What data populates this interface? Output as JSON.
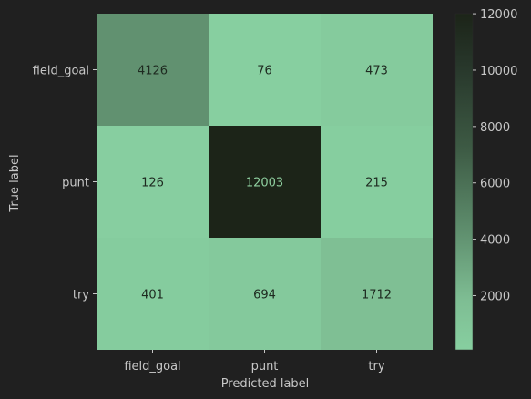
{
  "chart_data": {
    "type": "heatmap",
    "title": "",
    "xlabel": "Predicted label",
    "ylabel": "True label",
    "x_categories": [
      "field_goal",
      "punt",
      "try"
    ],
    "y_categories": [
      "field_goal",
      "punt",
      "try"
    ],
    "values": [
      [
        4126,
        76,
        473
      ],
      [
        126,
        12003,
        215
      ],
      [
        401,
        694,
        1712
      ]
    ],
    "colorbar": {
      "ticks": [
        2000,
        4000,
        6000,
        8000,
        10000,
        12000
      ],
      "tick_labels": [
        "2000",
        "4000",
        "6000",
        "8000",
        "10000",
        "12000"
      ],
      "range": [
        76,
        12003
      ]
    },
    "colors": {
      "background": "#202020",
      "cell_low": "#87cfa0",
      "cell_high": "#1c2418",
      "text": "#c7c7c7",
      "cell_text_dark": "#1e2a20",
      "cell_text_light": "#8fcf9f"
    },
    "grid": false
  }
}
